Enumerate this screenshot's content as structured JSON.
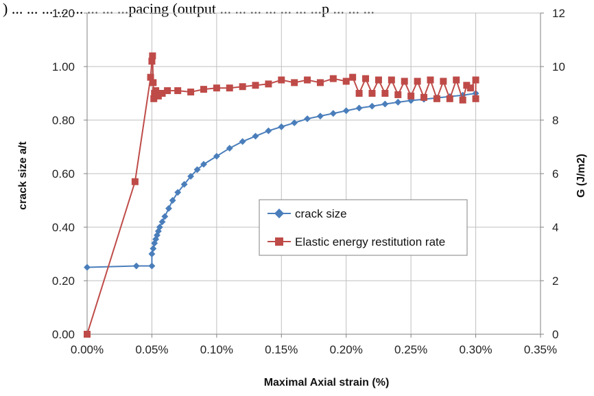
{
  "caption_top": ") ... ... ... ... ... ... ... ...pacing (output ... ... ... ... ... ... ...p ... ... ...",
  "colors": {
    "crack": "#4A7EBB",
    "energy": "#BE4B48",
    "grid": "#BFBFBF",
    "axis": "#808080"
  },
  "chart_data": {
    "type": "line",
    "title": "",
    "xlabel": "Maximal Axial strain (%)",
    "ylabel_left": "crack size a/t",
    "ylabel_right": "G (J/m2)",
    "xlim": [
      0,
      0.35
    ],
    "ylim_left": [
      0,
      1.2
    ],
    "ylim_right": [
      0,
      12
    ],
    "x_ticks": [
      "0.00%",
      "0.05%",
      "0.10%",
      "0.15%",
      "0.20%",
      "0.25%",
      "0.30%",
      "0.35%"
    ],
    "y_ticks_left": [
      "0.00",
      "0.20",
      "0.40",
      "0.60",
      "0.80",
      "1.00",
      "1.20"
    ],
    "y_ticks_right": [
      "0",
      "2",
      "4",
      "6",
      "8",
      "10",
      "12"
    ],
    "grid": "vertical and horizontal",
    "legend_position": "center-right",
    "series": [
      {
        "name": "crack size",
        "axis": "left",
        "marker": "diamond",
        "x": [
          0.0,
          0.038,
          0.05,
          0.05,
          0.051,
          0.052,
          0.053,
          0.054,
          0.055,
          0.056,
          0.058,
          0.06,
          0.063,
          0.066,
          0.07,
          0.075,
          0.08,
          0.085,
          0.09,
          0.1,
          0.11,
          0.12,
          0.13,
          0.14,
          0.15,
          0.16,
          0.17,
          0.18,
          0.19,
          0.2,
          0.21,
          0.22,
          0.23,
          0.24,
          0.25,
          0.26,
          0.27,
          0.28,
          0.29,
          0.3
        ],
        "values": [
          0.25,
          0.255,
          0.255,
          0.3,
          0.32,
          0.34,
          0.355,
          0.37,
          0.385,
          0.4,
          0.42,
          0.44,
          0.47,
          0.5,
          0.53,
          0.56,
          0.59,
          0.615,
          0.635,
          0.665,
          0.695,
          0.72,
          0.74,
          0.76,
          0.775,
          0.79,
          0.805,
          0.815,
          0.825,
          0.835,
          0.845,
          0.852,
          0.86,
          0.867,
          0.873,
          0.878,
          0.883,
          0.888,
          0.893,
          0.9
        ]
      },
      {
        "name": "Elastic energy restitution rate",
        "axis": "right",
        "marker": "square",
        "x": [
          0.0,
          0.037,
          0.049,
          0.05,
          0.0505,
          0.051,
          0.0515,
          0.052,
          0.053,
          0.055,
          0.058,
          0.062,
          0.07,
          0.08,
          0.09,
          0.1,
          0.11,
          0.12,
          0.13,
          0.14,
          0.15,
          0.16,
          0.17,
          0.18,
          0.19,
          0.2,
          0.205,
          0.21,
          0.215,
          0.22,
          0.225,
          0.23,
          0.235,
          0.24,
          0.245,
          0.25,
          0.255,
          0.26,
          0.265,
          0.27,
          0.275,
          0.28,
          0.285,
          0.29,
          0.293,
          0.296,
          0.3,
          0.3
        ],
        "values": [
          0.0,
          5.7,
          9.6,
          10.2,
          10.4,
          9.4,
          8.8,
          9.0,
          9.1,
          8.9,
          9.0,
          9.1,
          9.1,
          9.05,
          9.15,
          9.2,
          9.2,
          9.25,
          9.3,
          9.35,
          9.5,
          9.4,
          9.5,
          9.4,
          9.55,
          9.45,
          9.6,
          9.0,
          9.55,
          9.0,
          9.5,
          9.0,
          9.5,
          8.95,
          9.45,
          8.9,
          9.45,
          8.85,
          9.5,
          8.8,
          9.45,
          8.8,
          9.5,
          8.75,
          9.3,
          9.2,
          9.5,
          8.8
        ]
      }
    ]
  }
}
